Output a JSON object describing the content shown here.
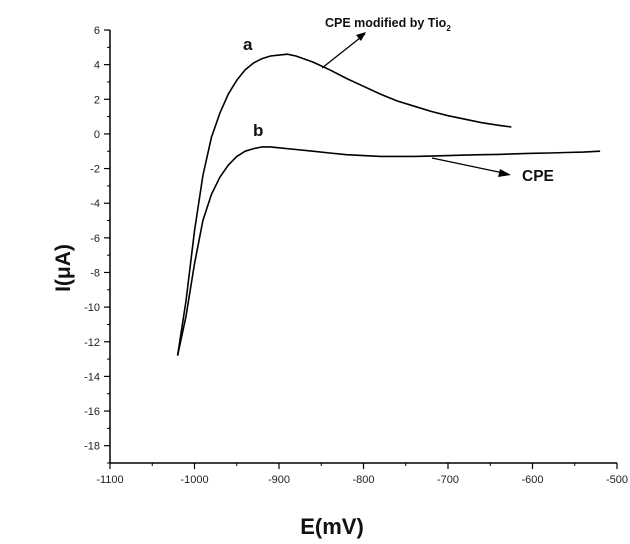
{
  "chart_data": {
    "type": "line",
    "title": "",
    "xlabel": "E(mV)",
    "ylabel": "I(μA)",
    "xlim": [
      -1100,
      -500
    ],
    "ylim": [
      -19,
      6
    ],
    "x_ticks": [
      -1100,
      -1000,
      -900,
      -800,
      -700,
      -600,
      -500
    ],
    "y_ticks": [
      6,
      4,
      2,
      0,
      -2,
      -4,
      -6,
      -8,
      -10,
      -12,
      -14,
      -16,
      -18
    ],
    "grid": false,
    "series": [
      {
        "label": "a",
        "color": "#000000",
        "x": [
          -1020,
          -1010,
          -1000,
          -990,
          -980,
          -970,
          -960,
          -950,
          -940,
          -930,
          -920,
          -910,
          -900,
          -890,
          -880,
          -860,
          -840,
          -820,
          -800,
          -780,
          -760,
          -740,
          -720,
          -700,
          -680,
          -660,
          -640,
          -625
        ],
        "y": [
          -12.8,
          -9.6,
          -5.6,
          -2.4,
          -0.2,
          1.2,
          2.3,
          3.1,
          3.7,
          4.1,
          4.35,
          4.5,
          4.55,
          4.6,
          4.5,
          4.15,
          3.7,
          3.2,
          2.75,
          2.3,
          1.9,
          1.6,
          1.3,
          1.05,
          0.85,
          0.65,
          0.5,
          0.4
        ]
      },
      {
        "label": "b",
        "color": "#000000",
        "x": [
          -1020,
          -1010,
          -1000,
          -990,
          -980,
          -970,
          -960,
          -950,
          -940,
          -930,
          -920,
          -910,
          -900,
          -880,
          -860,
          -840,
          -820,
          -800,
          -780,
          -760,
          -740,
          -720,
          -700,
          -680,
          -660,
          -640,
          -620,
          -600,
          -580,
          -560,
          -540,
          -520
        ],
        "y": [
          -12.8,
          -10.5,
          -7.5,
          -5.0,
          -3.5,
          -2.5,
          -1.8,
          -1.3,
          -1.0,
          -0.85,
          -0.75,
          -0.75,
          -0.8,
          -0.9,
          -1.0,
          -1.1,
          -1.2,
          -1.25,
          -1.3,
          -1.3,
          -1.3,
          -1.28,
          -1.25,
          -1.22,
          -1.2,
          -1.18,
          -1.15,
          -1.12,
          -1.1,
          -1.07,
          -1.05,
          -1.0
        ]
      }
    ],
    "annotations": {
      "a_label": "a",
      "b_label": "b",
      "a_note": "CPE modified by Tio",
      "a_note_sub": "2",
      "b_note": "CPE"
    }
  }
}
